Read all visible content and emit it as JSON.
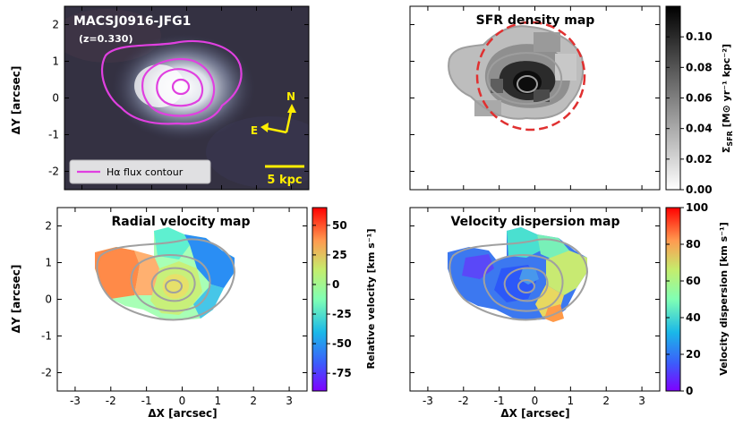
{
  "chart_data": [
    {
      "type": "heatmap",
      "panel": "image",
      "title": "MACSJ0916-JFG1",
      "subtitle": "(z=0.330)",
      "ylabel": "ΔY [arcsec]",
      "xlabel": "",
      "xlim": [
        -3.5,
        3.5
      ],
      "ylim": [
        -2.5,
        2.5
      ],
      "yticks": [
        "-2",
        "-1",
        "0",
        "1",
        "2"
      ],
      "legend": "Hα flux contour",
      "compass_north": "N",
      "compass_east": "E",
      "scalebar": "5 kpc",
      "legend_color": "#e040e0",
      "accent_color": "#ffee00"
    },
    {
      "type": "heatmap",
      "panel": "sfr",
      "title": "SFR density map",
      "colorbar_label_main": "Σ",
      "colorbar_label_sub": "SFR",
      "colorbar_label_rest": " [M⊙ yr⁻¹ kpc⁻²]",
      "colorbar_range": [
        0.0,
        0.12
      ],
      "colorbar_ticks": [
        "0.00",
        "0.02",
        "0.04",
        "0.06",
        "0.08",
        "0.10"
      ],
      "aperture_color": "#e03030"
    },
    {
      "type": "heatmap",
      "panel": "velocity",
      "title": "Radial velocity map",
      "xlabel": "ΔX [arcsec]",
      "ylabel": "ΔY [arcsec]",
      "xticks": [
        "-3",
        "-2",
        "-1",
        "0",
        "1",
        "2",
        "3"
      ],
      "yticks": [
        "-2",
        "-1",
        "0",
        "1",
        "2"
      ],
      "colorbar_label": "Relative velocity [km s⁻¹]",
      "colorbar_range": [
        -90,
        65
      ],
      "colorbar_ticks": [
        "-75",
        "-50",
        "-25",
        "0",
        "25",
        "50"
      ]
    },
    {
      "type": "heatmap",
      "panel": "dispersion",
      "title": "Velocity dispersion map",
      "xlabel": "ΔX [arcsec]",
      "xticks": [
        "-3",
        "-2",
        "-1",
        "0",
        "1",
        "2",
        "3"
      ],
      "colorbar_label": "Velocity dispersion [km s⁻¹]",
      "colorbar_range": [
        0,
        100
      ],
      "colorbar_ticks": [
        "0",
        "20",
        "40",
        "60",
        "80",
        "100"
      ]
    }
  ]
}
